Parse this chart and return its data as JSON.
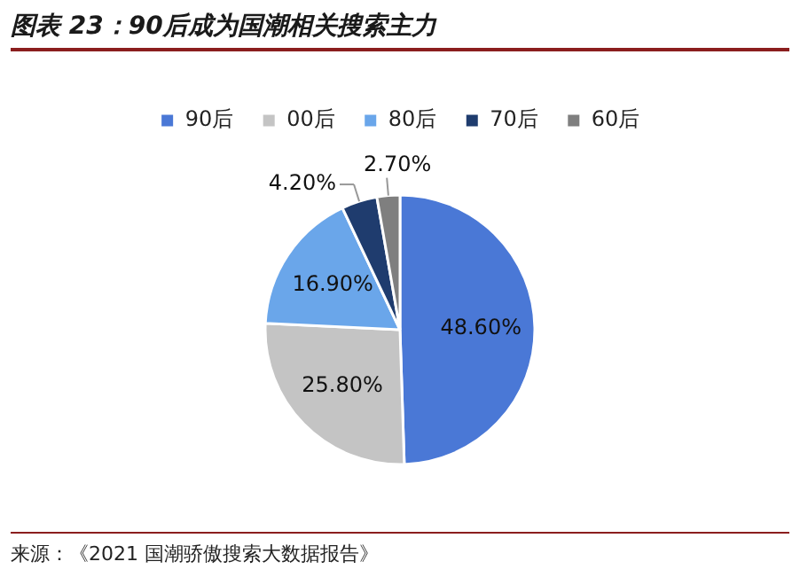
{
  "chart_data": {
    "type": "pie",
    "title": "图表 23：90后成为国潮相关搜索主力",
    "categories": [
      "90后",
      "00后",
      "80后",
      "70后",
      "60后"
    ],
    "values": [
      48.6,
      25.8,
      16.9,
      4.2,
      2.7
    ],
    "colors": [
      "#4a78d6",
      "#c4c4c4",
      "#6aa6ea",
      "#1f3c6e",
      "#7f7f7f"
    ],
    "value_labels": [
      "48.60%",
      "25.80%",
      "16.90%",
      "4.20%",
      "2.70%"
    ],
    "legend": "top",
    "annotations": [
      "来源：《2021 国潮骄傲搜索大数据报告》"
    ]
  }
}
